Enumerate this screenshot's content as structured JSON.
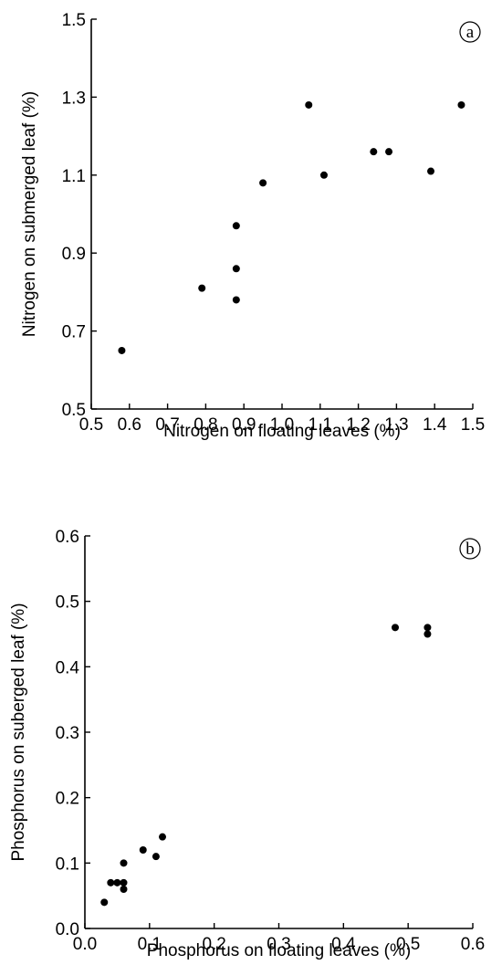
{
  "colors": {
    "points": "#000000",
    "axes": "#000000",
    "background": "#ffffff"
  },
  "chart_data": [
    {
      "type": "scatter",
      "panel_label": "a",
      "title": "",
      "xlabel": "Nitrogen on floating leaves (%)",
      "ylabel": "Nitrogen on submerged leaf (%)",
      "xlim": [
        0.5,
        1.5
      ],
      "ylim": [
        0.5,
        1.5
      ],
      "x_ticks": [
        "0.5",
        "0.6",
        "0.7",
        "0.8",
        "0.9",
        "1.0",
        "1.1",
        "1.2",
        "1.3",
        "1.4",
        "1.5"
      ],
      "y_ticks": [
        "0.5",
        "0.7",
        "0.9",
        "1.1",
        "1.3",
        "1.5"
      ],
      "grid": false,
      "x": [
        0.58,
        0.79,
        0.88,
        0.88,
        0.88,
        0.95,
        1.07,
        1.11,
        1.24,
        1.28,
        1.39,
        1.47
      ],
      "y": [
        0.65,
        0.81,
        0.78,
        0.86,
        0.97,
        1.08,
        1.28,
        1.1,
        1.16,
        1.16,
        1.11,
        1.28
      ]
    },
    {
      "type": "scatter",
      "panel_label": "b",
      "title": "",
      "xlabel": "Phosphorus on floating leaves (%)",
      "ylabel": "Phosphorus on suberged leaf (%)",
      "xlim": [
        0.0,
        0.6
      ],
      "ylim": [
        0.0,
        0.6
      ],
      "x_ticks": [
        "0.0",
        "0.1",
        "0.2",
        "0.3",
        "0.4",
        "0.5",
        "0.6"
      ],
      "y_ticks": [
        "0.0",
        "0.1",
        "0.2",
        "0.3",
        "0.4",
        "0.5",
        "0.6"
      ],
      "grid": false,
      "x": [
        0.03,
        0.04,
        0.05,
        0.06,
        0.06,
        0.06,
        0.09,
        0.11,
        0.12,
        0.48,
        0.53,
        0.53
      ],
      "y": [
        0.04,
        0.07,
        0.07,
        0.07,
        0.06,
        0.1,
        0.12,
        0.11,
        0.14,
        0.46,
        0.46,
        0.45
      ]
    }
  ]
}
